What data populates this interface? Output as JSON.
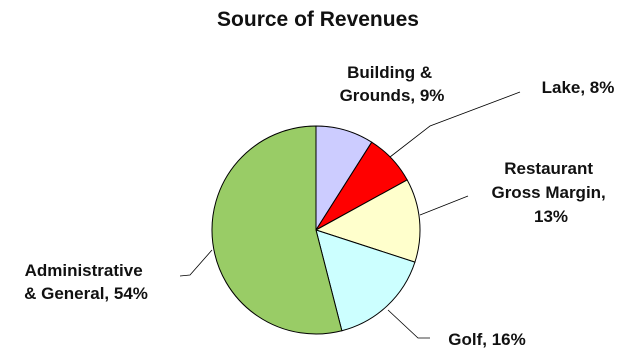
{
  "chart_data": {
    "type": "pie",
    "title": "Source of Revenues",
    "slices": [
      {
        "label": "Building & Grounds",
        "value": 9,
        "display": "Building & Grounds, 9%",
        "color": "#ccccff"
      },
      {
        "label": "Lake",
        "value": 8,
        "display": "Lake, 8%",
        "color": "#ff0000"
      },
      {
        "label": "Restaurant Gross Margin",
        "value": 13,
        "display": "Restaurant Gross Margin, 13%",
        "color": "#ffffcc"
      },
      {
        "label": "Golf",
        "value": 16,
        "display": "Golf, 16%",
        "color": "#ccffff"
      },
      {
        "label": "Administrative & General",
        "value": 54,
        "display": "Administrative & General, 54%",
        "color": "#99cc66"
      }
    ],
    "labels": {
      "building": [
        "Building &",
        "Grounds, 9%"
      ],
      "lake": [
        "Lake, 8%"
      ],
      "restaurant": [
        "Restaurant",
        "Gross Margin,",
        "13%"
      ],
      "golf": [
        "Golf, 16%"
      ],
      "admin": [
        "Administrative",
        "& General, 54%"
      ]
    },
    "legend": "none"
  }
}
